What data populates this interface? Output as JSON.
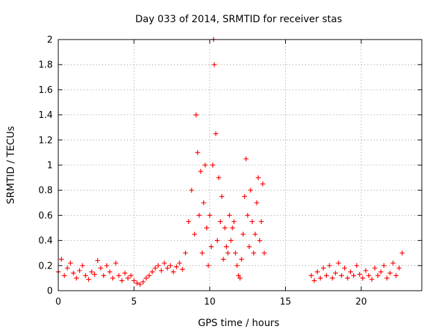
{
  "chart_data": {
    "type": "scatter",
    "title": "Day 033 of 2014, SRMTID for receiver stas",
    "xlabel": "GPS time / hours",
    "ylabel": "SRMTID / TECUs",
    "xlim": [
      0,
      24
    ],
    "ylim": [
      0,
      2
    ],
    "xticks": [
      0,
      5,
      10,
      15,
      20
    ],
    "yticks": [
      0,
      0.2,
      0.4,
      0.6,
      0.8,
      1,
      1.2,
      1.4,
      1.6,
      1.8,
      2
    ],
    "grid": true,
    "marker": "+",
    "series": [
      {
        "name": "stas",
        "color": "#ff0000",
        "x": [
          0.0,
          0.2,
          0.4,
          0.6,
          0.8,
          1.0,
          1.2,
          1.4,
          1.6,
          1.8,
          2.0,
          2.2,
          2.4,
          2.6,
          2.8,
          3.0,
          3.2,
          3.4,
          3.6,
          3.8,
          4.0,
          4.2,
          4.4,
          4.6,
          4.8,
          5.0,
          5.2,
          5.4,
          5.6,
          5.8,
          6.0,
          6.2,
          6.4,
          6.6,
          6.8,
          7.0,
          7.2,
          7.4,
          7.6,
          7.8,
          8.0,
          8.2,
          8.4,
          8.6,
          8.8,
          9.0,
          9.1,
          9.2,
          9.3,
          9.4,
          9.5,
          9.6,
          9.7,
          9.8,
          9.9,
          10.0,
          10.1,
          10.2,
          10.25,
          10.3,
          10.4,
          10.5,
          10.6,
          10.7,
          10.8,
          10.9,
          11.0,
          11.1,
          11.2,
          11.3,
          11.4,
          11.5,
          11.6,
          11.7,
          11.8,
          11.9,
          12.0,
          12.1,
          12.2,
          12.3,
          12.4,
          12.5,
          12.6,
          12.7,
          12.8,
          12.9,
          13.0,
          13.1,
          13.2,
          13.3,
          13.4,
          13.5,
          13.6,
          16.7,
          16.9,
          17.1,
          17.3,
          17.5,
          17.7,
          17.9,
          18.1,
          18.3,
          18.5,
          18.7,
          18.9,
          19.1,
          19.3,
          19.5,
          19.7,
          19.9,
          20.1,
          20.3,
          20.5,
          20.7,
          20.9,
          21.1,
          21.3,
          21.5,
          21.7,
          21.9,
          22.1,
          22.3,
          22.5,
          22.7
        ],
        "y": [
          0.15,
          0.25,
          0.12,
          0.18,
          0.22,
          0.14,
          0.1,
          0.16,
          0.2,
          0.12,
          0.09,
          0.15,
          0.13,
          0.24,
          0.18,
          0.12,
          0.2,
          0.15,
          0.1,
          0.22,
          0.12,
          0.08,
          0.14,
          0.1,
          0.12,
          0.08,
          0.06,
          0.05,
          0.07,
          0.1,
          0.12,
          0.15,
          0.18,
          0.2,
          0.16,
          0.22,
          0.18,
          0.2,
          0.15,
          0.19,
          0.22,
          0.17,
          0.3,
          0.55,
          0.8,
          0.45,
          1.4,
          1.1,
          0.6,
          0.95,
          0.3,
          0.7,
          1.0,
          0.5,
          0.2,
          0.6,
          0.35,
          1.0,
          2.0,
          1.8,
          1.25,
          0.4,
          0.9,
          0.55,
          0.75,
          0.25,
          0.5,
          0.35,
          0.3,
          0.6,
          0.4,
          0.5,
          0.55,
          0.3,
          0.2,
          0.12,
          0.1,
          0.25,
          0.45,
          0.75,
          1.05,
          0.6,
          0.35,
          0.8,
          0.55,
          0.3,
          0.45,
          0.7,
          0.9,
          0.4,
          0.55,
          0.85,
          0.3,
          0.12,
          0.08,
          0.15,
          0.1,
          0.18,
          0.12,
          0.2,
          0.1,
          0.14,
          0.22,
          0.12,
          0.18,
          0.1,
          0.15,
          0.12,
          0.2,
          0.13,
          0.1,
          0.16,
          0.12,
          0.09,
          0.18,
          0.12,
          0.15,
          0.2,
          0.1,
          0.14,
          0.22,
          0.12,
          0.18,
          0.3
        ]
      }
    ]
  }
}
